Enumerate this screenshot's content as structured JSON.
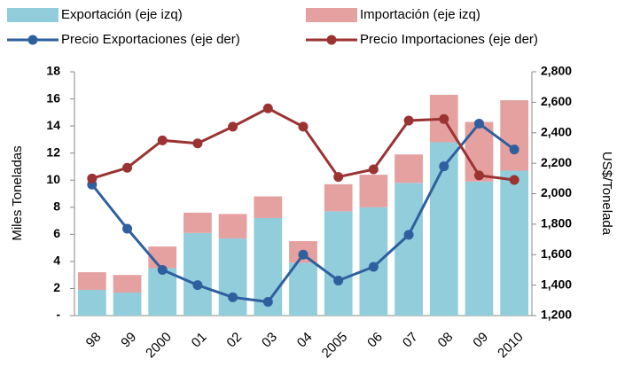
{
  "chart_data": {
    "type": "bar-line",
    "categories": [
      "98",
      "99",
      "2000",
      "01",
      "02",
      "03",
      "04",
      "2005",
      "06",
      "07",
      "08",
      "09",
      "2010"
    ],
    "series": [
      {
        "name": "Exportación (eje izq)",
        "type": "bar",
        "color": "#92cddc",
        "values": [
          1.9,
          1.7,
          3.5,
          6.1,
          5.7,
          7.2,
          3.9,
          7.7,
          8.0,
          9.8,
          12.8,
          9.9,
          10.7
        ]
      },
      {
        "name": "Importación (eje izq)",
        "type": "bar",
        "color": "#e5a0a0",
        "values": [
          1.3,
          1.3,
          1.6,
          1.5,
          1.8,
          1.6,
          1.6,
          2.0,
          2.4,
          2.1,
          3.5,
          4.4,
          5.2
        ]
      },
      {
        "name": "Precio Exportaciones (eje der)",
        "type": "line",
        "axis": "y2",
        "color": "#2f5f9e",
        "values": [
          2060,
          1770,
          1500,
          1400,
          1320,
          1290,
          1600,
          1430,
          1520,
          1730,
          2180,
          2460,
          2290
        ]
      },
      {
        "name": "Precio Importaciones (eje der)",
        "type": "line",
        "axis": "y2",
        "color": "#9b3333",
        "values": [
          2100,
          2170,
          2350,
          2330,
          2440,
          2560,
          2440,
          2110,
          2160,
          2480,
          2490,
          2120,
          2090
        ]
      }
    ],
    "ylabel": "Miles Toneladas",
    "y2label": "US$/Tonelada",
    "ylim": [
      0,
      18
    ],
    "yticks": [
      {
        "value": 0,
        "label": "-"
      },
      2,
      4,
      6,
      8,
      10,
      12,
      14,
      16,
      18
    ],
    "y2lim": [
      1200,
      2800
    ],
    "y2ticks": [
      {
        "value": 1200,
        "label": "1,200"
      },
      {
        "value": 1400,
        "label": "1,400"
      },
      {
        "value": 1600,
        "label": "1,600"
      },
      {
        "value": 1800,
        "label": "1,800"
      },
      {
        "value": 2000,
        "label": "2,000"
      },
      {
        "value": 2200,
        "label": "2,200"
      },
      {
        "value": 2400,
        "label": "2,400"
      },
      {
        "value": 2600,
        "label": "2,600"
      },
      {
        "value": 2800,
        "label": "2,800"
      }
    ],
    "legend": "top"
  }
}
